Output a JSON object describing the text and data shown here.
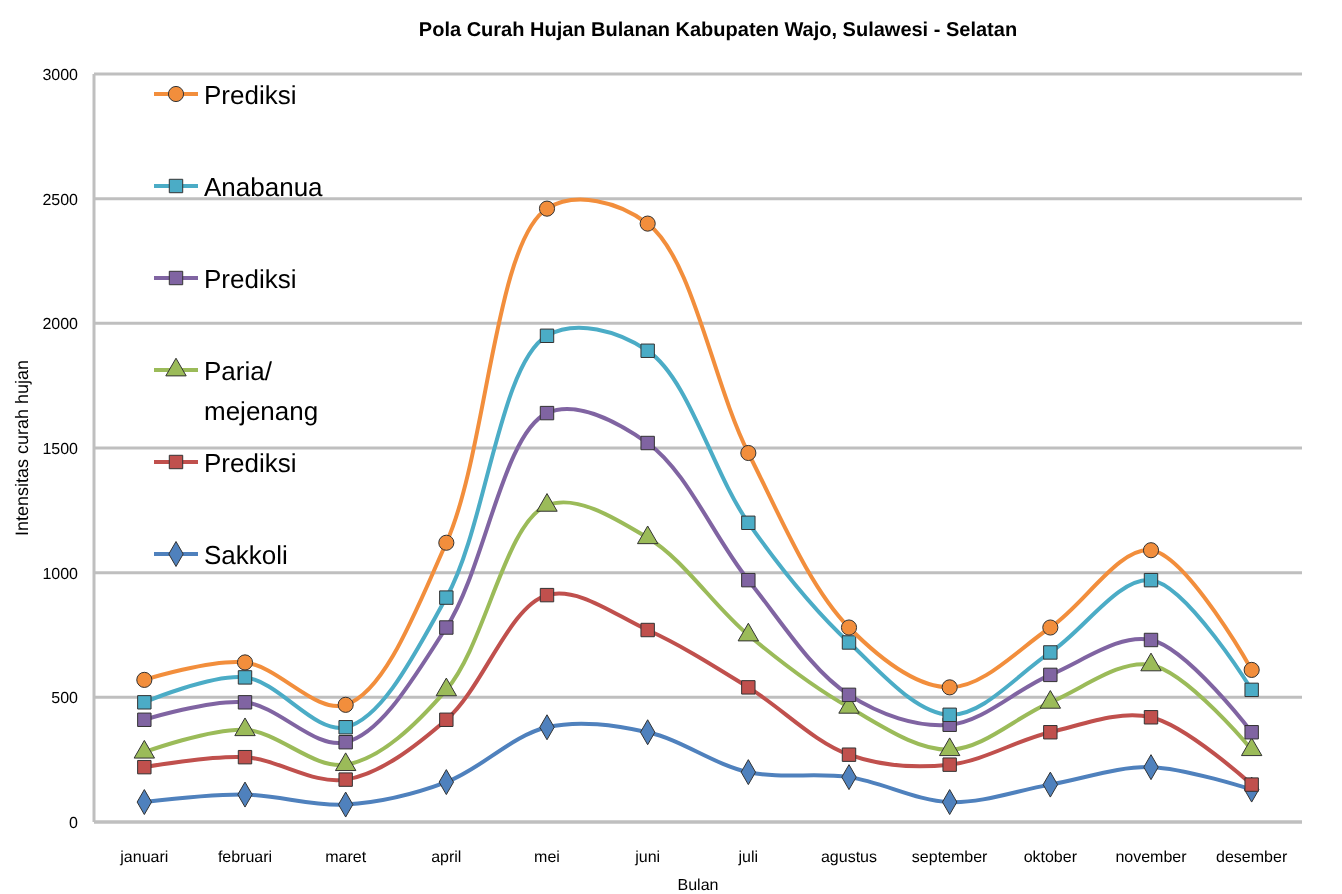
{
  "chart_data": {
    "type": "line",
    "title": "Pola Curah  Hujan Bulanan Kabupaten  Wajo, Sulawesi - Selatan",
    "xlabel": "Bulan",
    "ylabel": "Intensitas curah hujan",
    "categories": [
      "januari",
      "februari",
      "maret",
      "april",
      "mei",
      "juni",
      "juli",
      "agustus",
      "september",
      "oktober",
      "november",
      "desember"
    ],
    "series": [
      {
        "name": "Prediksi",
        "color": "#f28e3c",
        "marker": "circle",
        "values": [
          570,
          640,
          470,
          1120,
          2460,
          2400,
          1480,
          780,
          540,
          780,
          1090,
          610
        ]
      },
      {
        "name": "Anabanua",
        "color": "#4bacc6",
        "marker": "square",
        "values": [
          480,
          580,
          380,
          900,
          1950,
          1890,
          1200,
          720,
          430,
          680,
          970,
          530
        ]
      },
      {
        "name": "Prediksi",
        "color": "#8064a2",
        "marker": "square",
        "values": [
          410,
          480,
          320,
          780,
          1640,
          1520,
          970,
          510,
          390,
          590,
          730,
          360
        ]
      },
      {
        "name": "Paria/ mejenang",
        "color": "#9bbb59",
        "marker": "triangle",
        "values": [
          280,
          370,
          230,
          530,
          1270,
          1140,
          750,
          460,
          290,
          480,
          630,
          290
        ]
      },
      {
        "name": "Prediksi",
        "color": "#c0504d",
        "marker": "square",
        "values": [
          220,
          260,
          170,
          410,
          910,
          770,
          540,
          270,
          230,
          360,
          420,
          150
        ]
      },
      {
        "name": "Sakkoli",
        "color": "#4f81bd",
        "marker": "diamond",
        "values": [
          80,
          110,
          70,
          160,
          380,
          360,
          200,
          180,
          80,
          150,
          220,
          130
        ]
      }
    ],
    "ylim": [
      0,
      3000
    ],
    "yticks": [
      0,
      500,
      1000,
      1500,
      2000,
      2500,
      3000
    ],
    "grid": "y",
    "legend": "top left",
    "line_style": "solid"
  }
}
